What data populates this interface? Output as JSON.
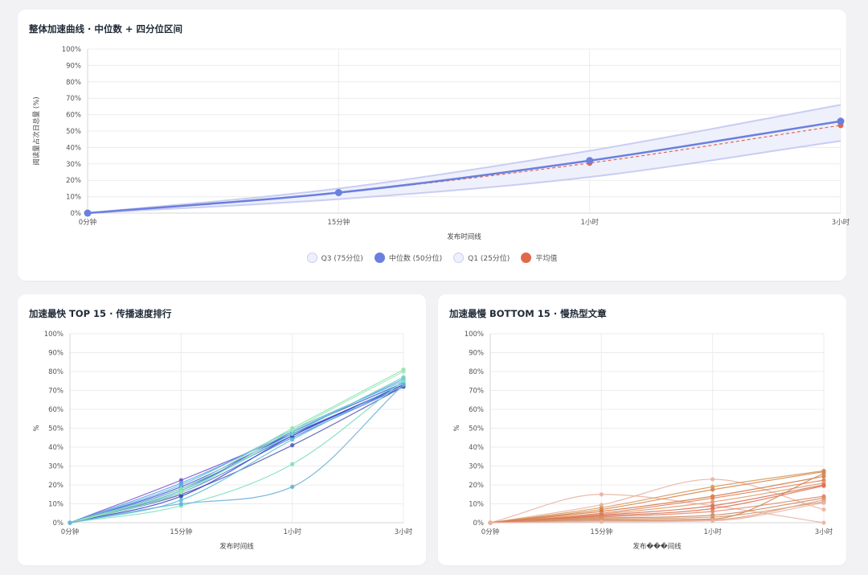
{
  "cards": {
    "overall_title": "整体加速曲线 · 中位数 + 四分位区间",
    "top15_title": "加速最快 TOP 15 · 传播速度排行",
    "bottom15_title": "加速最慢 BOTTOM 15 · 慢热型文章"
  },
  "legend": {
    "q3": "Q3 (75分位)",
    "median": "中位数 (50分位)",
    "q1": "Q1 (25分位)",
    "mean": "平均值"
  },
  "chart_data": [
    {
      "type": "line",
      "title": "整体加速曲线 · 中位数 + 四分位区间",
      "x": [
        "0分钟",
        "15分钟",
        "1小时",
        "3小时"
      ],
      "xlabel": "发布时间线",
      "ylabel": "阅读量占次日总量 (%)",
      "ylim": [
        0,
        100
      ],
      "yticks": [
        "0%",
        "10%",
        "20%",
        "30%",
        "40%",
        "50%",
        "60%",
        "70%",
        "80%",
        "90%",
        "100%"
      ],
      "grid": true,
      "legend_position": "bottom",
      "series": [
        {
          "name": "Q3 (75分位)",
          "values": [
            0,
            15,
            38,
            66
          ],
          "color": "#c9cdf3",
          "fill": "#eef0fb"
        },
        {
          "name": "中位数 (50分位)",
          "values": [
            0,
            12.5,
            32,
            56
          ],
          "color": "#6b7fdf"
        },
        {
          "name": "Q1 (25分位)",
          "values": [
            0,
            8.5,
            22,
            44
          ],
          "color": "#c9cdf3",
          "fill": "#eef0fb"
        },
        {
          "name": "平均值",
          "values": [
            0,
            12.5,
            30.5,
            53.5
          ],
          "color": "#e0694a",
          "dashed": true
        }
      ]
    },
    {
      "type": "line",
      "title": "加速最快 TOP 15 · 传播速度排行",
      "x": [
        "0分钟",
        "15分钟",
        "1小时",
        "3小时"
      ],
      "xlabel": "发布时间线",
      "ylabel": "%",
      "ylim": [
        0,
        100
      ],
      "yticks": [
        "0%",
        "10%",
        "20%",
        "30%",
        "40%",
        "50%",
        "60%",
        "70%",
        "80%",
        "90%",
        "100%"
      ],
      "grid": true,
      "series": [
        {
          "values": [
            0,
            22.5,
            47,
            73
          ],
          "color": "#7b4fd6"
        },
        {
          "values": [
            0,
            19,
            47,
            72
          ],
          "color": "#4a5ad8"
        },
        {
          "values": [
            0,
            18,
            46,
            73
          ],
          "color": "#4f6fe0"
        },
        {
          "values": [
            0,
            17,
            48,
            74
          ],
          "color": "#3f63d4"
        },
        {
          "values": [
            0,
            16,
            45,
            72
          ],
          "color": "#5b7be6"
        },
        {
          "values": [
            0,
            15,
            41,
            72
          ],
          "color": "#5a5fb8"
        },
        {
          "values": [
            0,
            14,
            46,
            73
          ],
          "color": "#3d49c4"
        },
        {
          "values": [
            0,
            20,
            49,
            75
          ],
          "color": "#6bb4e8"
        },
        {
          "values": [
            0,
            21,
            48,
            76
          ],
          "color": "#57a8dd"
        },
        {
          "values": [
            0,
            17,
            47,
            77
          ],
          "color": "#6fd0c8"
        },
        {
          "values": [
            0,
            18,
            50,
            81
          ],
          "color": "#8de3b4"
        },
        {
          "values": [
            0,
            16,
            49,
            80
          ],
          "color": "#9fe8b8"
        },
        {
          "values": [
            0,
            12,
            44,
            74
          ],
          "color": "#5ec0d8"
        },
        {
          "values": [
            0,
            9,
            31,
            75
          ],
          "color": "#7fe0c0"
        },
        {
          "values": [
            0,
            10,
            19,
            73
          ],
          "color": "#6ab0d8"
        }
      ]
    },
    {
      "type": "line",
      "title": "加速最慢 BOTTOM 15 · 慢热型文章",
      "x": [
        "0分钟",
        "15分钟",
        "1小时",
        "3小时"
      ],
      "xlabel": "发布���间线",
      "ylabel": "%",
      "ylim": [
        0,
        100
      ],
      "yticks": [
        "0%",
        "10%",
        "20%",
        "30%",
        "40%",
        "50%",
        "60%",
        "70%",
        "80%",
        "90%",
        "100%"
      ],
      "grid": true,
      "series": [
        {
          "values": [
            0,
            15,
            9,
            0
          ],
          "color": "#eab3a2"
        },
        {
          "values": [
            0,
            9.5,
            23,
            7
          ],
          "color": "#eab3a2"
        },
        {
          "values": [
            0,
            8,
            19,
            27.5
          ],
          "color": "#d89a5a"
        },
        {
          "values": [
            0,
            7,
            17.5,
            27
          ],
          "color": "#d6874e"
        },
        {
          "values": [
            0,
            6,
            14,
            24.5
          ],
          "color": "#d67a48"
        },
        {
          "values": [
            0,
            5,
            13,
            22.5
          ],
          "color": "#de7f58"
        },
        {
          "values": [
            0,
            4.5,
            11,
            21
          ],
          "color": "#e39a6f"
        },
        {
          "values": [
            0,
            4,
            9,
            20
          ],
          "color": "#d8765a"
        },
        {
          "values": [
            0,
            3.5,
            7.5,
            19.5
          ],
          "color": "#e07050"
        },
        {
          "values": [
            0,
            3,
            6,
            14
          ],
          "color": "#e08a6a"
        },
        {
          "values": [
            0,
            2.5,
            4,
            13
          ],
          "color": "#cf8a60"
        },
        {
          "values": [
            0,
            2,
            3,
            11
          ],
          "color": "#d79a7a"
        },
        {
          "values": [
            0,
            1.5,
            2,
            26
          ],
          "color": "#c98a58"
        },
        {
          "values": [
            0,
            1,
            1.5,
            12
          ],
          "color": "#e0a080"
        },
        {
          "values": [
            0,
            0.5,
            1,
            10.5
          ],
          "color": "#eab3a2"
        }
      ]
    }
  ]
}
